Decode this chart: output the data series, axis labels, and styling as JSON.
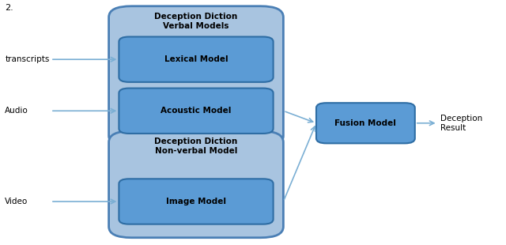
{
  "bg_color": "#ffffff",
  "outer_box_fill": "#a8c4e0",
  "outer_box_edge": "#4a7fb5",
  "inner_box_fill": "#5b9bd5",
  "inner_box_edge": "#2e6da4",
  "arrow_color": "#7bafd4",
  "text_color": "#000000",
  "title_text": "2.",
  "verbal_title": "Deception Diction\nVerbal Models",
  "nonverbal_title": "Deception Diction\nNon-verbal Model",
  "lexical_label": "Lexical Model",
  "acoustic_label": "Acoustic Model",
  "image_label": "Image Model",
  "fusion_label": "Fusion Model",
  "transcripts_label": "ranscripts",
  "audio_label": "Audio",
  "video_label": "Video",
  "deception_label": "Deception\nResult",
  "outer_lw": 2.0,
  "inner_lw": 1.5
}
